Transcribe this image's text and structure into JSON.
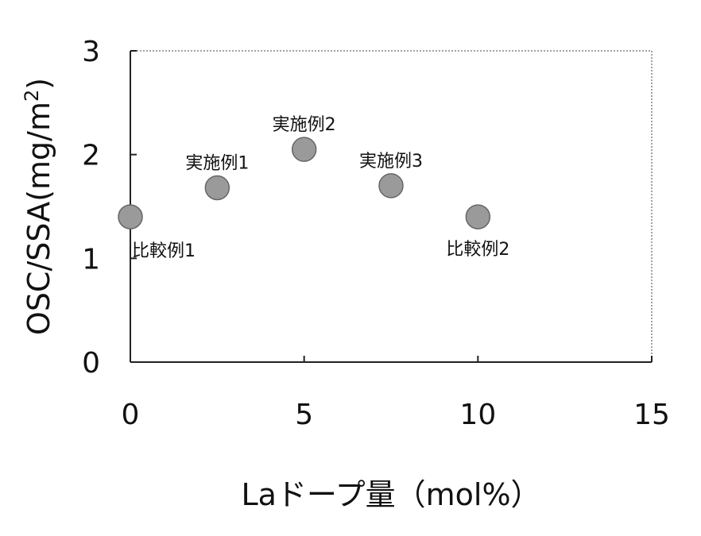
{
  "chart_data": {
    "type": "scatter",
    "title": "",
    "xlabel": "Laドープ量（mol%）",
    "ylabel": "OSC/SSA(mg/m",
    "ylabel_superscript": "2",
    "ylabel_suffix": ")",
    "xlim": [
      0,
      15
    ],
    "ylim": [
      0,
      3
    ],
    "x_ticks": [
      0,
      5,
      10,
      15
    ],
    "y_ticks": [
      0,
      1,
      2,
      3
    ],
    "x_tick_labels": [
      "0",
      "5",
      "10",
      "15"
    ],
    "y_tick_labels": [
      "0",
      "1",
      "2",
      "3"
    ],
    "grid": false,
    "legend": "none",
    "marker_color": "#9a9a9a",
    "points": [
      {
        "x": 0,
        "y": 1.4,
        "label": "比較例1",
        "label_pos": "below-right"
      },
      {
        "x": 2.5,
        "y": 1.68,
        "label": "実施例1",
        "label_pos": "above"
      },
      {
        "x": 5,
        "y": 2.05,
        "label": "実施例2",
        "label_pos": "above"
      },
      {
        "x": 7.5,
        "y": 1.7,
        "label": "実施例3",
        "label_pos": "above"
      },
      {
        "x": 10,
        "y": 1.4,
        "label": "比較例2",
        "label_pos": "below"
      }
    ]
  }
}
